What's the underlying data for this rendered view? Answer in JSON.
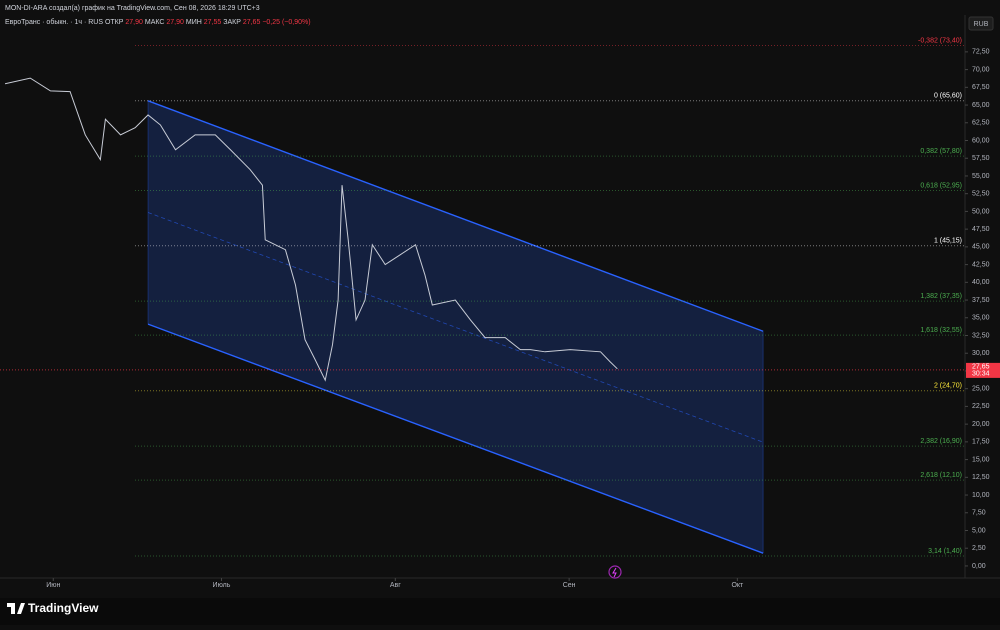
{
  "header": "MON-DI-ARA создал(а) график на TradingView.com, Сен 08, 2026 18:29 UTC+3",
  "brand": "TradingView",
  "currency": "RUB",
  "legend": {
    "symbol": "ЕвроТранс · обыкн. · 1ч · RUS",
    "fields": [
      {
        "key": "ОТКР",
        "value": "27,90"
      },
      {
        "key": "МАКС",
        "value": "27,90"
      },
      {
        "key": "МИН",
        "value": "27,55"
      },
      {
        "key": "ЗАКР",
        "value": "27,65"
      }
    ],
    "change": "−0,25 (−0,90%)"
  },
  "chart_data": {
    "type": "line",
    "color": "#c8ccd6",
    "x": [
      -8.6,
      -4.1,
      -0.5,
      3.0,
      5.7,
      8.4,
      9.3,
      12.0,
      14.6,
      16.9,
      19.1,
      21.8,
      25.3,
      28.9,
      31.6,
      35.1,
      37.3,
      37.8,
      41.4,
      43.2,
      44.9,
      46.7,
      48.5,
      49.8,
      50.8,
      51.5,
      52.6,
      54.0,
      55.6,
      56.9,
      59.2,
      61.9,
      64.6,
      66.3,
      67.6,
      71.7,
      74.4,
      77.0,
      80.6,
      83.3,
      85.1,
      87.7,
      92.2,
      97.6,
      99.3,
      100.6
    ],
    "values": [
      68,
      68.8,
      67,
      66.9,
      60.8,
      57.3,
      63,
      60.8,
      61.8,
      63.6,
      62.2,
      58.7,
      60.8,
      60.8,
      58.7,
      55.9,
      53.7,
      46,
      44.6,
      39.6,
      31.9,
      29.1,
      26.2,
      31.2,
      37.5,
      53.7,
      46,
      34.7,
      37.5,
      45.3,
      42.5,
      43.9,
      45.3,
      41,
      36.8,
      37.5,
      34.7,
      32.2,
      32.2,
      30.5,
      30.5,
      30.2,
      30.5,
      30.2,
      28.8,
      27.8
    ],
    "xlim": [
      -9.5,
      162.6
    ],
    "xticks": [
      {
        "value": 0,
        "label": "Июн"
      },
      {
        "value": 30,
        "label": "Июль"
      },
      {
        "value": 61,
        "label": "Авг"
      },
      {
        "value": 92,
        "label": "Сен"
      },
      {
        "value": 122,
        "label": "Окт"
      }
    ],
    "ylim": [
      -1.7,
      77.7
    ],
    "yticks": [
      {
        "value": 0,
        "label": "0,00"
      },
      {
        "value": 2.5,
        "label": "2,50"
      },
      {
        "value": 5,
        "label": "5,00"
      },
      {
        "value": 7.5,
        "label": "7,50"
      },
      {
        "value": 10,
        "label": "10,00"
      },
      {
        "value": 12.5,
        "label": "12,50"
      },
      {
        "value": 15,
        "label": "15,00"
      },
      {
        "value": 17.5,
        "label": "17,50"
      },
      {
        "value": 20,
        "label": "20,00"
      },
      {
        "value": 22.5,
        "label": "22,50"
      },
      {
        "value": 25,
        "label": "25,00"
      },
      {
        "value": 27.5,
        "label": "27,50"
      },
      {
        "value": 30,
        "label": "30,00"
      },
      {
        "value": 32.5,
        "label": "32,50"
      },
      {
        "value": 35,
        "label": "35,00"
      },
      {
        "value": 37.5,
        "label": "37,50"
      },
      {
        "value": 40,
        "label": "40,00"
      },
      {
        "value": 42.5,
        "label": "42,50"
      },
      {
        "value": 45,
        "label": "45,00"
      },
      {
        "value": 47.5,
        "label": "47,50"
      },
      {
        "value": 50,
        "label": "50,00"
      },
      {
        "value": 52.5,
        "label": "52,50"
      },
      {
        "value": 55,
        "label": "55,00"
      },
      {
        "value": 57.5,
        "label": "57,50"
      },
      {
        "value": 60,
        "label": "60,00"
      },
      {
        "value": 62.5,
        "label": "62,50"
      },
      {
        "value": 65,
        "label": "65,00"
      },
      {
        "value": 67.5,
        "label": "67,50"
      },
      {
        "value": 70,
        "label": "70,00"
      },
      {
        "value": 72.5,
        "label": "72,50"
      }
    ],
    "channel": {
      "x": [
        16.9,
        126.6
      ],
      "upper": [
        65.6,
        33.1
      ],
      "middle": [
        49.85,
        17.45
      ],
      "lower": [
        34.1,
        1.8
      ],
      "color": "#2962ff"
    },
    "fib_levels": [
      {
        "label": "-0,382 (73,40)",
        "price": 73.4,
        "color": "#f23645"
      },
      {
        "label": "0 (65,60)",
        "price": 65.6,
        "color": "#ffffff"
      },
      {
        "label": "0,382 (57,80)",
        "price": 57.8,
        "color": "#4caf50"
      },
      {
        "label": "0,618 (52,95)",
        "price": 52.95,
        "color": "#4caf50"
      },
      {
        "label": "1 (45,15)",
        "price": 45.15,
        "color": "#ffffff"
      },
      {
        "label": "1,382 (37,35)",
        "price": 37.35,
        "color": "#4caf50"
      },
      {
        "label": "1,618 (32,55)",
        "price": 32.55,
        "color": "#4caf50"
      },
      {
        "label": "2 (24,70)",
        "price": 24.7,
        "color": "#ffeb3b"
      },
      {
        "label": "2,382 (16,90)",
        "price": 16.9,
        "color": "#4caf50"
      },
      {
        "label": "2,618 (12,10)",
        "price": 12.1,
        "color": "#4caf50"
      },
      {
        "label": "3,14 (1,40)",
        "price": 1.4,
        "color": "#4caf50"
      }
    ],
    "last_price": {
      "value": 27.65,
      "label": "27,65",
      "color": "#f23645"
    },
    "countdown": "30:34"
  }
}
